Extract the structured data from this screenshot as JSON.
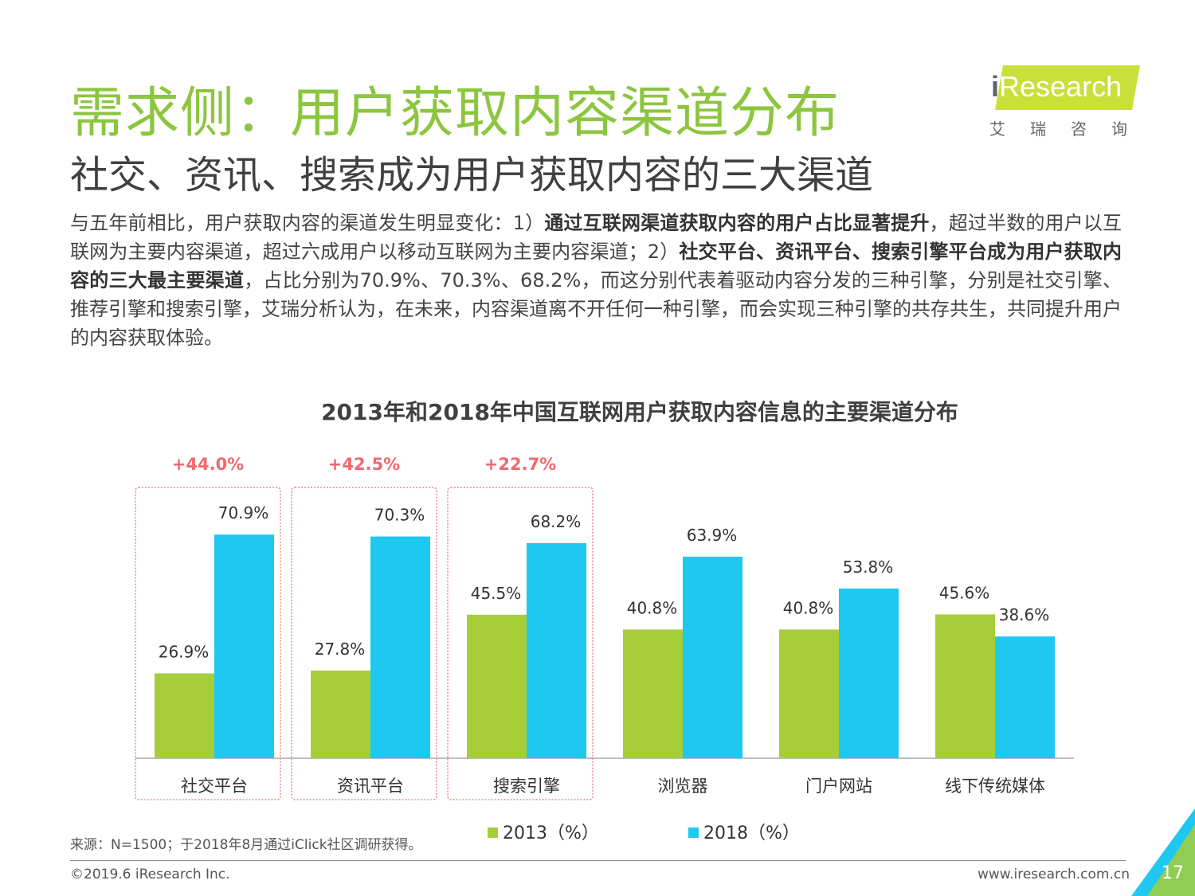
{
  "page": {
    "title": "需求侧：用户获取内容渠道分布",
    "subtitle": "社交、资讯、搜索成为用户获取内容的三大渠道",
    "paragraph": [
      {
        "text": "与五年前相比，用户获取内容的渠道发生明显变化：1）",
        "bold": false
      },
      {
        "text": "通过互联网渠道获取内容的用户占比显著提升",
        "bold": true
      },
      {
        "text": "，超过半数的用户以互联网为主要内容渠道，超过六成用户以移动互联网为主要内容渠道；2）",
        "bold": false
      },
      {
        "text": "社交平台、资讯平台、搜索引擎平台成为用户获取内容的三大最主要渠道",
        "bold": true
      },
      {
        "text": "，占比分别为70.9%、70.3%、68.2%，而这分别代表着驱动内容分发的三种引擎，分别是社交引擎、推荐引擎和搜索引擎，艾瑞分析认为，在未来，内容渠道离不开任何一种引擎，而会实现三种引擎的共存共生，共同提升用户的内容获取体验。",
        "bold": false
      }
    ],
    "source": "来源：N=1500；于2018年8月通过iClick社区调研获得。",
    "copyright": "©2019.6 iResearch Inc.",
    "website": "www.iresearch.com.cn",
    "page_number": "17"
  },
  "logo": {
    "brand_i": "i",
    "brand_rest": "Research",
    "chinese": "艾瑞咨询"
  },
  "colors": {
    "title_green": "#8cc63f",
    "series_2013": "#a6ce39",
    "series_2018": "#1ec8f0",
    "growth_label": "#f0696e",
    "highlight_border": "#e8747a"
  },
  "chart_data": {
    "type": "bar",
    "title": "2013年和2018年中国互联网用户获取内容信息的主要渠道分布",
    "categories": [
      "社交平台",
      "资讯平台",
      "搜索引擎",
      "浏览器",
      "门户网站",
      "线下传统媒体"
    ],
    "series": [
      {
        "name": "2013（%）",
        "values": [
          26.9,
          27.8,
          45.5,
          40.8,
          40.8,
          45.6
        ],
        "color": "#a6ce39"
      },
      {
        "name": "2018（%）",
        "values": [
          70.9,
          70.3,
          68.2,
          63.9,
          53.8,
          38.6
        ],
        "color": "#1ec8f0"
      }
    ],
    "growth_labels": [
      "+44.0%",
      "+42.5%",
      "+22.7%"
    ],
    "highlighted_categories": [
      0,
      1,
      2
    ],
    "legend_position": "bottom",
    "grid": false
  }
}
